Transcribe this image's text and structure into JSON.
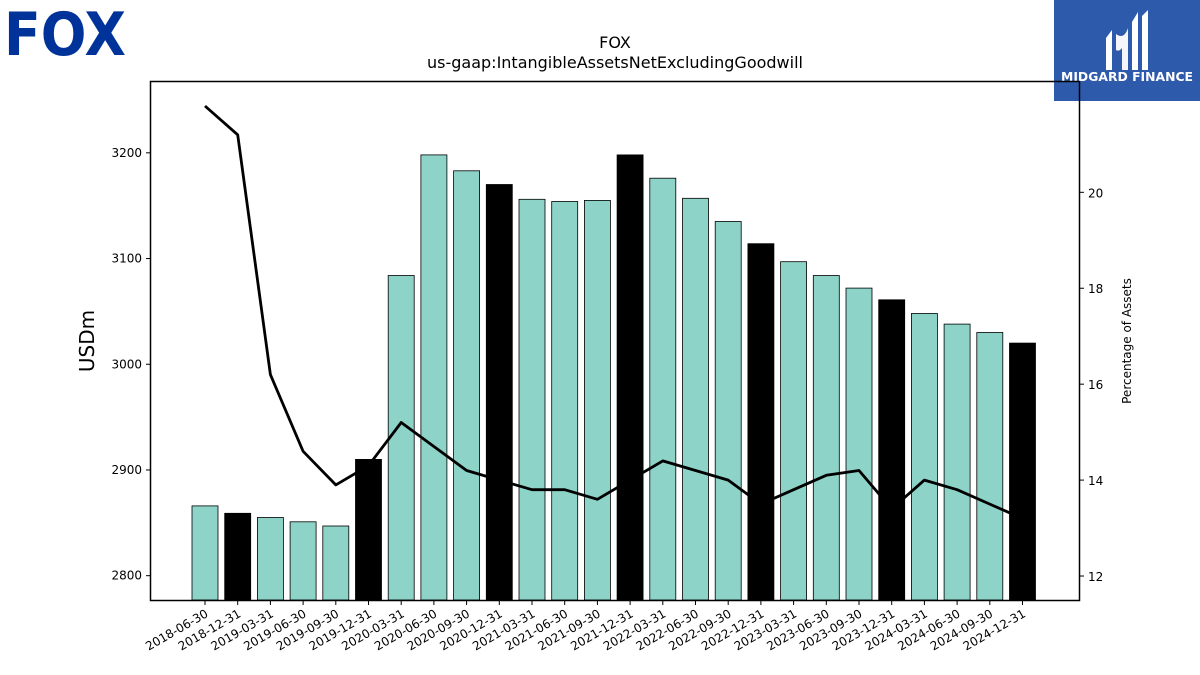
{
  "header": {
    "company_logo_text": "FOX",
    "brand_logo_text": "MIDGARD FINANCE"
  },
  "colors": {
    "bar_regular": "#8dd3c7",
    "bar_year_end": "#000000",
    "line": "#000000",
    "fox_blue": "#003399",
    "midgard_blue": "#2e5aac"
  },
  "chart_data": {
    "type": "bar",
    "title": "FOX",
    "subtitle": "us-gaap:IntangibleAssetsNetExcludingGoodwill",
    "ylabel": "USDm",
    "y2label": "Percentage of Assets",
    "ylim": [
      2777,
      3267
    ],
    "y2lim": [
      11.5,
      22.3
    ],
    "yticks": [
      2800,
      2900,
      3000,
      3100,
      3200
    ],
    "y2ticks": [
      12,
      14,
      16,
      18,
      20
    ],
    "grid": false,
    "legend": "none",
    "categories": [
      "2018-06-30",
      "2018-12-31",
      "2019-03-31",
      "2019-06-30",
      "2019-09-30",
      "2019-12-31",
      "2020-03-31",
      "2020-06-30",
      "2020-09-30",
      "2020-12-31",
      "2021-03-31",
      "2021-06-30",
      "2021-09-30",
      "2021-12-31",
      "2022-03-31",
      "2022-06-30",
      "2022-09-30",
      "2022-12-31",
      "2023-03-31",
      "2023-06-30",
      "2023-09-30",
      "2023-12-31",
      "2024-03-31",
      "2024-06-30",
      "2024-09-30",
      "2024-12-31"
    ],
    "series": [
      {
        "type": "bar",
        "values": [
          2866,
          2859,
          2855,
          2851,
          2847,
          2910,
          3084,
          3198,
          3183,
          3170,
          3156,
          3154,
          3155,
          3198,
          3176,
          3157,
          3135,
          3114,
          3097,
          3084,
          3072,
          3061,
          3048,
          3038,
          3030,
          3020
        ],
        "highlight": [
          false,
          true,
          false,
          false,
          false,
          true,
          false,
          false,
          false,
          true,
          false,
          false,
          false,
          true,
          false,
          false,
          false,
          true,
          false,
          false,
          false,
          true,
          false,
          false,
          false,
          true
        ]
      },
      {
        "type": "line",
        "axis": "right",
        "values": [
          21.8,
          21.2,
          16.2,
          14.6,
          13.9,
          14.3,
          15.2,
          14.7,
          14.2,
          14.0,
          13.8,
          13.8,
          13.6,
          14.0,
          14.4,
          14.2,
          14.0,
          13.5,
          13.8,
          14.1,
          14.2,
          13.4,
          14.0,
          13.8,
          13.5,
          13.2
        ]
      }
    ]
  }
}
